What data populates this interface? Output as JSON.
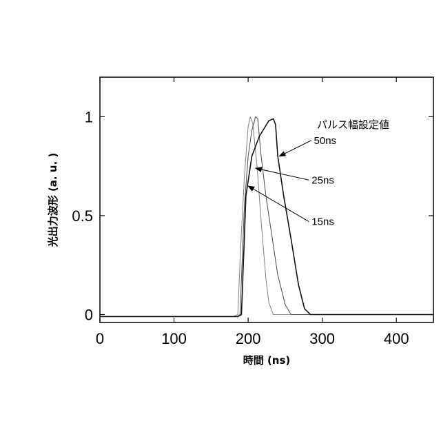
{
  "chart_data": {
    "type": "line",
    "title": "",
    "xlabel": "時間 (ns)",
    "ylabel": "光出力波形 (a. u. )",
    "xlim": [
      0,
      450
    ],
    "ylim": [
      -0.04,
      1.2
    ],
    "xticks": [
      0,
      100,
      200,
      300,
      400
    ],
    "yticks": [
      0,
      0.5,
      1
    ],
    "ytick_labels": [
      "0",
      "0.5",
      "1"
    ],
    "grid": false,
    "legend_title": "パルス幅設定値",
    "series": [
      {
        "name": "15ns",
        "color": "#8a8a8a",
        "x": [
          0,
          100,
          180,
          186,
          190,
          195,
          200,
          203,
          206,
          212,
          218,
          224,
          228,
          234,
          450
        ],
        "y": [
          -0.01,
          -0.01,
          -0.01,
          0.0,
          0.35,
          0.7,
          0.95,
          1.0,
          0.97,
          0.75,
          0.45,
          0.18,
          0.06,
          0.0,
          0.0
        ]
      },
      {
        "name": "25ns",
        "color": "#555555",
        "x": [
          0,
          100,
          185,
          189,
          195,
          200,
          205,
          210,
          213,
          217,
          224,
          232,
          240,
          250,
          258,
          450
        ],
        "y": [
          -0.01,
          -0.01,
          -0.01,
          0.0,
          0.55,
          0.8,
          0.93,
          1.0,
          0.99,
          0.82,
          0.6,
          0.4,
          0.2,
          0.05,
          0.0,
          0.0
        ]
      },
      {
        "name": "50ns",
        "color": "#111111",
        "x": [
          0,
          100,
          186,
          191,
          197,
          205,
          215,
          228,
          234,
          237,
          240,
          248,
          258,
          268,
          276,
          284,
          450
        ],
        "y": [
          -0.01,
          -0.01,
          -0.01,
          0.0,
          0.6,
          0.8,
          0.9,
          0.98,
          0.99,
          0.96,
          0.8,
          0.6,
          0.38,
          0.15,
          0.03,
          0.0,
          0.0
        ]
      }
    ],
    "annotations": [
      {
        "text": "50ns",
        "label_at": [
          285,
          0.88
        ],
        "arrow_to": [
          242,
          0.8
        ]
      },
      {
        "text": "25ns",
        "label_at": [
          282,
          0.68
        ],
        "arrow_to": [
          210,
          0.74
        ]
      },
      {
        "text": "15ns",
        "label_at": [
          282,
          0.47
        ],
        "arrow_to": [
          200,
          0.65
        ]
      }
    ]
  }
}
